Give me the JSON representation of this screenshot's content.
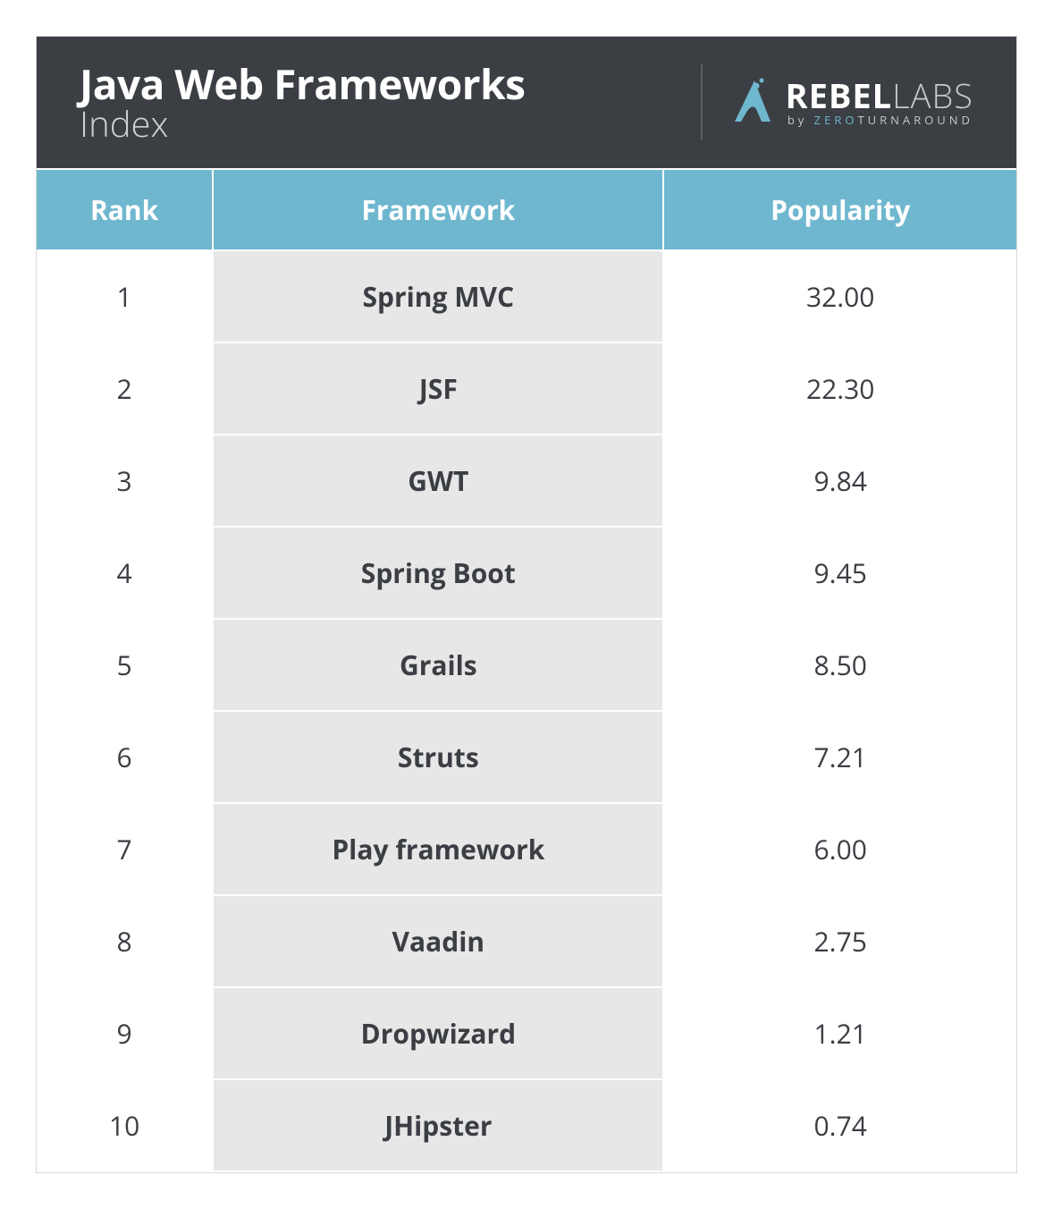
{
  "header": {
    "title_main": "Java Web Frameworks",
    "title_sub": "Index",
    "logo": {
      "word1": "REBEL",
      "word2": "LABS",
      "byline_prefix": "by ",
      "byline_accent": "ZERO",
      "byline_rest": "TURNAROUND",
      "accent_color": "#6fb7cf",
      "mark_color": "#6fb7cf"
    }
  },
  "table": {
    "type": "table",
    "header_bg": "#6fb7cf",
    "header_fg": "#ffffff",
    "row_bg": "#ffffff",
    "framework_col_bg": "#e7e7e7",
    "border_color": "#ffffff",
    "text_color": "#3b3e43",
    "font_size_pt": 22,
    "columns": [
      "Rank",
      "Framework",
      "Popularity"
    ],
    "rows": [
      {
        "rank": "1",
        "framework": "Spring MVC",
        "popularity": "32.00"
      },
      {
        "rank": "2",
        "framework": "JSF",
        "popularity": "22.30"
      },
      {
        "rank": "3",
        "framework": "GWT",
        "popularity": "9.84"
      },
      {
        "rank": "4",
        "framework": "Spring Boot",
        "popularity": "9.45"
      },
      {
        "rank": "5",
        "framework": "Grails",
        "popularity": "8.50"
      },
      {
        "rank": "6",
        "framework": "Struts",
        "popularity": "7.21"
      },
      {
        "rank": "7",
        "framework": "Play framework",
        "popularity": "6.00"
      },
      {
        "rank": "8",
        "framework": "Vaadin",
        "popularity": "2.75"
      },
      {
        "rank": "9",
        "framework": "Dropwizard",
        "popularity": "1.21"
      },
      {
        "rank": "10",
        "framework": "JHipster",
        "popularity": "0.74"
      }
    ]
  }
}
